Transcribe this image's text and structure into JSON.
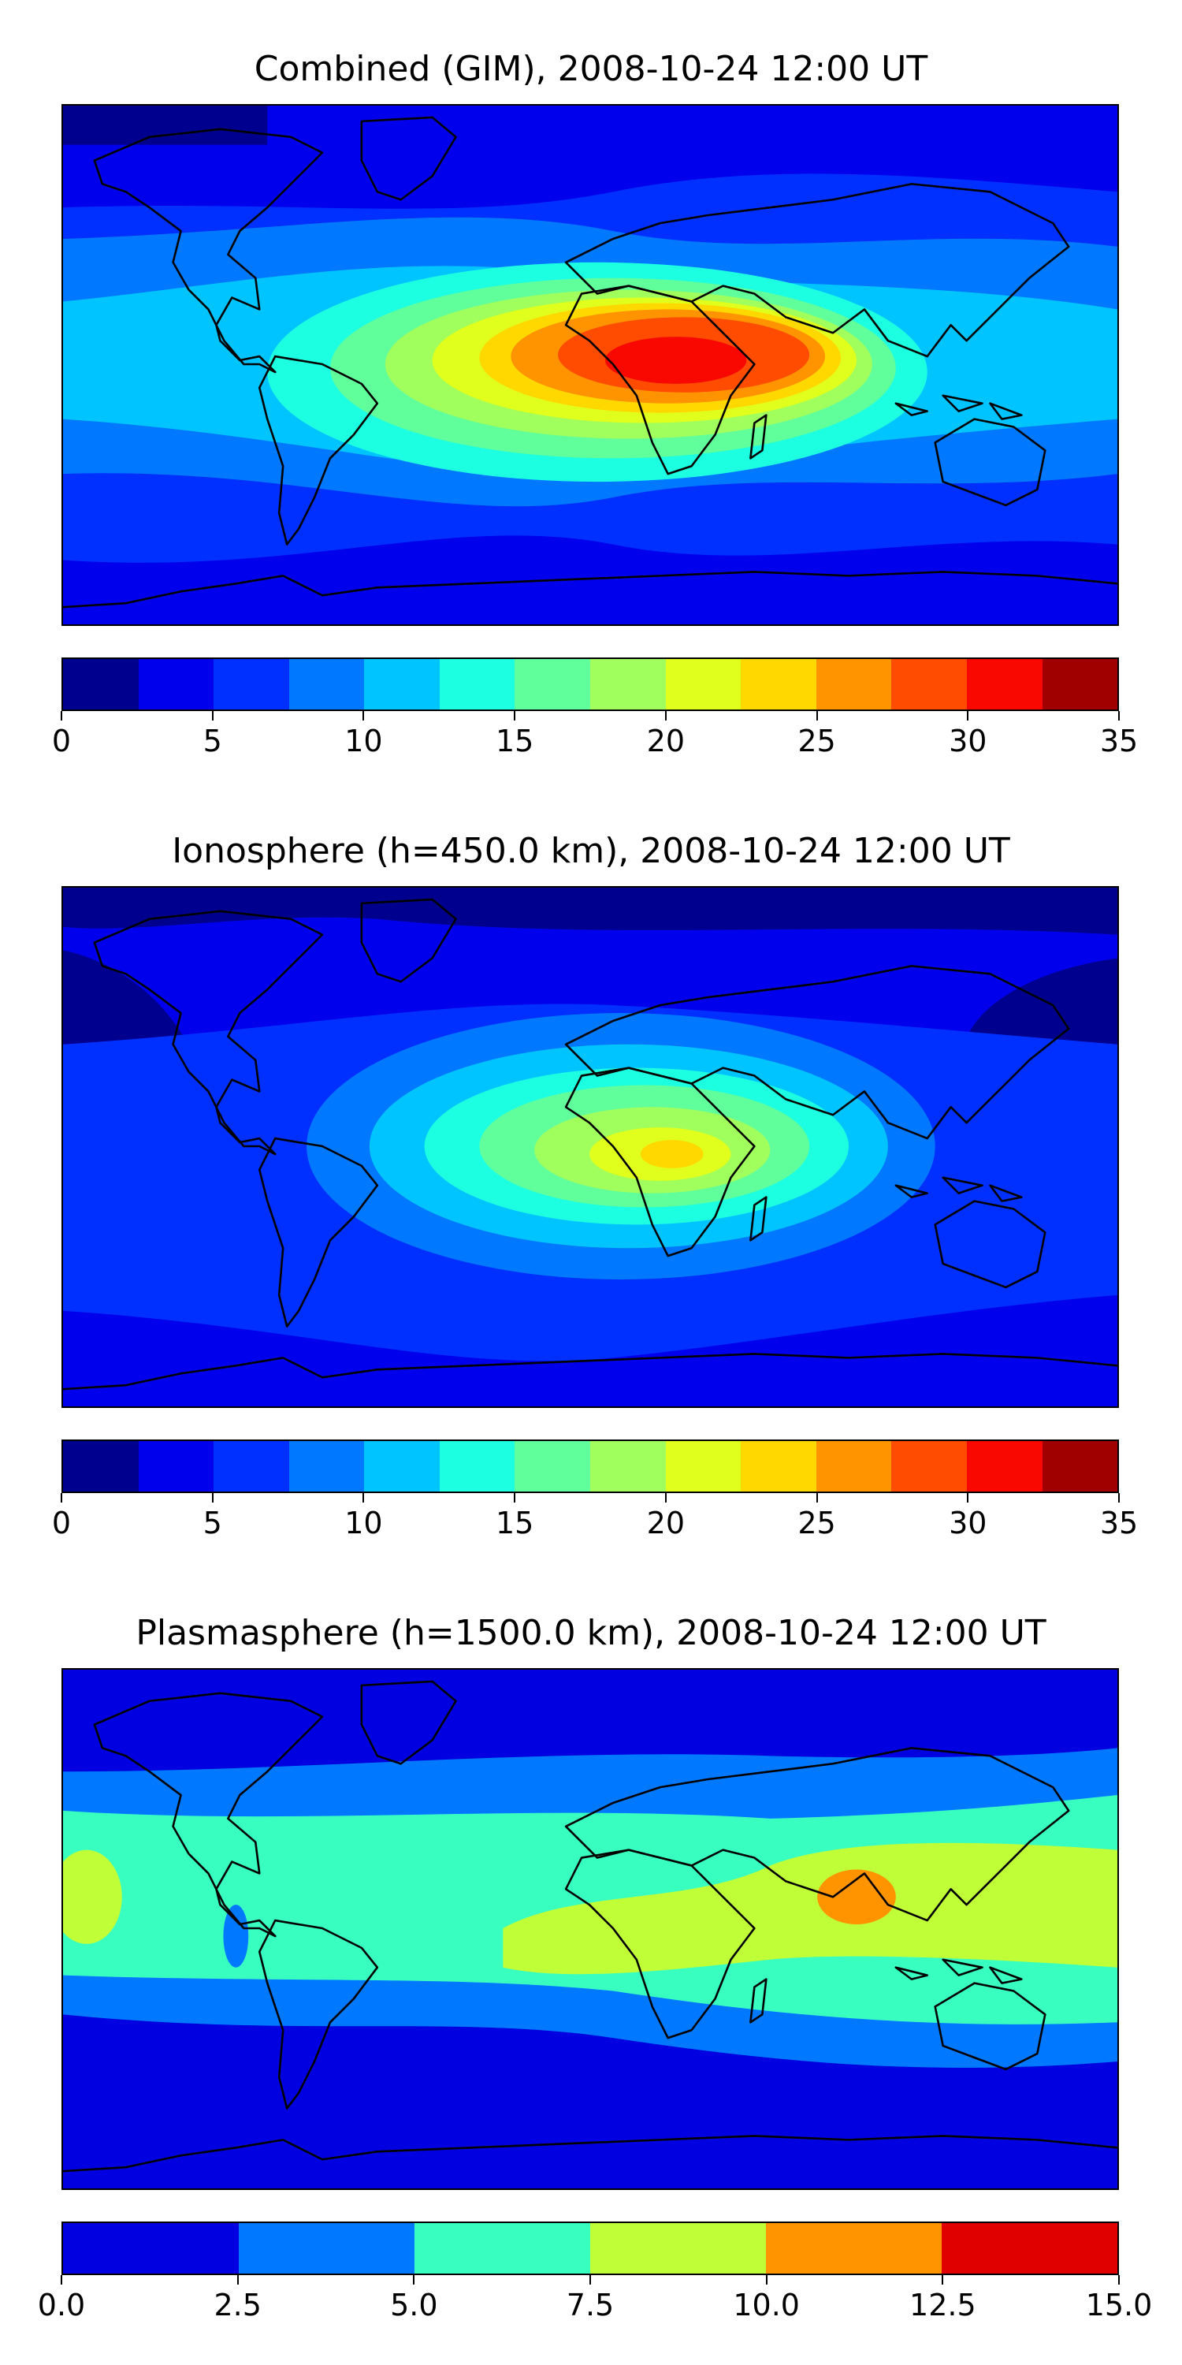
{
  "panels": [
    {
      "title": "Combined (GIM), 2008-10-24 12:00 UT",
      "colorbar": {
        "colors": [
          "#00008f",
          "#0000ec",
          "#0030ff",
          "#0078ff",
          "#00c4ff",
          "#1cffe0",
          "#60ff9c",
          "#a0ff5c",
          "#e0ff1c",
          "#ffd800",
          "#ff9400",
          "#ff4c00",
          "#f80800",
          "#a00000"
        ],
        "ticks": [
          "0",
          "5",
          "10",
          "15",
          "20",
          "25",
          "30",
          "35"
        ]
      }
    },
    {
      "title": "Ionosphere  (h=450.0 km), 2008-10-24 12:00 UT",
      "colorbar": {
        "colors": [
          "#00008f",
          "#0000ec",
          "#0030ff",
          "#0078ff",
          "#00c4ff",
          "#1cffe0",
          "#60ff9c",
          "#a0ff5c",
          "#e0ff1c",
          "#ffd800",
          "#ff9400",
          "#ff4c00",
          "#f80800",
          "#a00000"
        ],
        "ticks": [
          "0",
          "5",
          "10",
          "15",
          "20",
          "25",
          "30",
          "35"
        ]
      }
    },
    {
      "title": "Plasmasphere (h=1500.0 km), 2008-10-24 12:00 UT",
      "colorbar": {
        "colors": [
          "#0000e0",
          "#0078ff",
          "#38ffc0",
          "#c0ff38",
          "#ff9400",
          "#e00000"
        ],
        "ticks": [
          "0.0",
          "2.5",
          "5.0",
          "7.5",
          "10.0",
          "12.5",
          "15.0"
        ]
      }
    }
  ]
}
